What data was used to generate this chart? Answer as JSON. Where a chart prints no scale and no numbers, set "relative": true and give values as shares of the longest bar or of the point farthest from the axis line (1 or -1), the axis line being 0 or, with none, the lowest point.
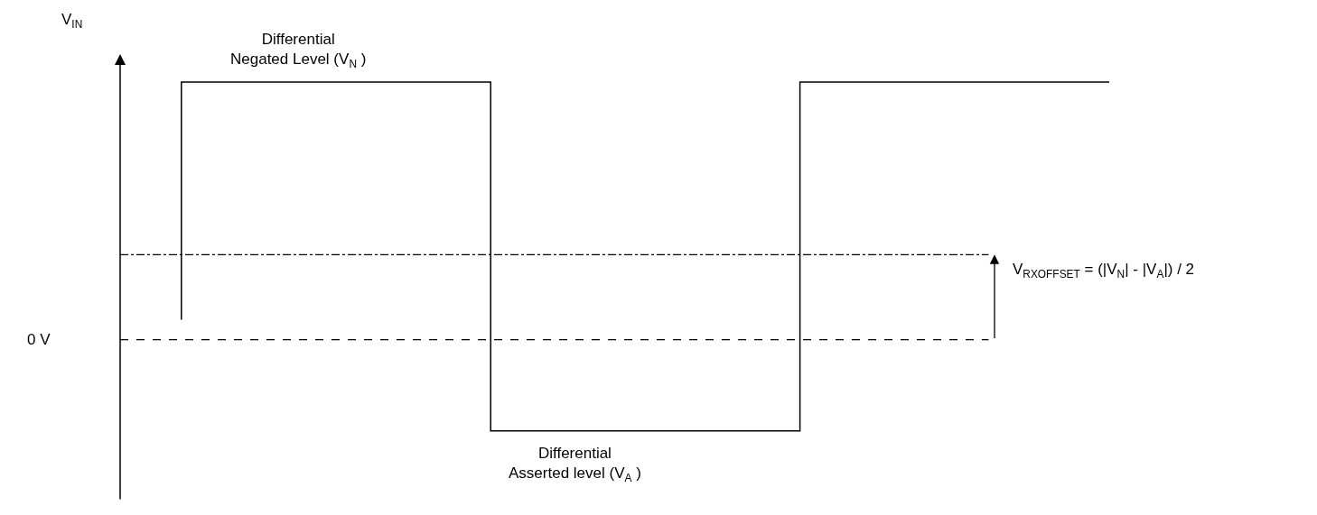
{
  "chart_data": {
    "type": "step",
    "relative": true,
    "ylabel": "V$_{IN}$",
    "marker": "none",
    "line_style": "solid",
    "categories": [
      null,
      null,
      null,
      null
    ],
    "series": [
      {
        "color": "#000000",
        "values": [
          0.077,
          1,
          -0.354,
          1
        ]
      }
    ],
    "ref_lines": [
      {
        "axis": "y",
        "value": 0,
        "label": "0 V",
        "line_style": "dashed",
        "color": "#000000"
      },
      {
        "axis": "y",
        "value": 0.33,
        "label": null,
        "line_style": "dashdot",
        "color": "#000000"
      }
    ],
    "annotations": [
      "Differential\nNegated Level (V$_{N}$ )",
      "Differential\nAsserted level (V$_{A}$ )",
      "V$_{RXOFFSET}$ = (|V$_{N}$| - |V$_{A}$|) / 2"
    ]
  }
}
